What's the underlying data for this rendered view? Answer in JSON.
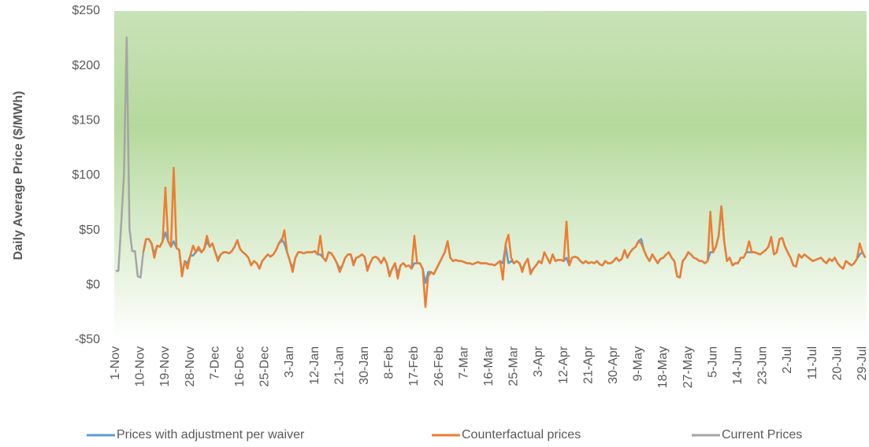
{
  "chart_data": {
    "type": "line",
    "y_label": "Daily Average Price ($/MWh)",
    "ylim": [
      -50,
      250
    ],
    "yticks": [
      {
        "value": -50,
        "label": "-$50"
      },
      {
        "value": 0,
        "label": "$0"
      },
      {
        "value": 50,
        "label": "$50"
      },
      {
        "value": 100,
        "label": "$100"
      },
      {
        "value": 150,
        "label": "$150"
      },
      {
        "value": 200,
        "label": "$200"
      },
      {
        "value": 250,
        "label": "$250"
      }
    ],
    "grid": false,
    "legend": "bottom",
    "categories": [
      "1-Nov",
      null,
      null,
      null,
      null,
      null,
      null,
      null,
      null,
      "10-Nov",
      null,
      null,
      null,
      null,
      null,
      null,
      null,
      null,
      "19-Nov",
      null,
      null,
      null,
      null,
      null,
      null,
      null,
      null,
      "28-Nov",
      null,
      null,
      null,
      null,
      null,
      null,
      null,
      null,
      "7-Dec",
      null,
      null,
      null,
      null,
      null,
      null,
      null,
      null,
      "16-Dec",
      null,
      null,
      null,
      null,
      null,
      null,
      null,
      null,
      "25-Dec",
      null,
      null,
      null,
      null,
      null,
      null,
      null,
      null,
      "3-Jan",
      null,
      null,
      null,
      null,
      null,
      null,
      null,
      null,
      "12-Jan",
      null,
      null,
      null,
      null,
      null,
      null,
      null,
      null,
      "21-Jan",
      null,
      null,
      null,
      null,
      null,
      null,
      null,
      null,
      "30-Jan",
      null,
      null,
      null,
      null,
      null,
      null,
      null,
      null,
      "8-Feb",
      null,
      null,
      null,
      null,
      null,
      null,
      null,
      null,
      "17-Feb",
      null,
      null,
      null,
      null,
      null,
      null,
      null,
      null,
      "26-Feb",
      null,
      null,
      null,
      null,
      null,
      null,
      null,
      null,
      "7-Mar",
      null,
      null,
      null,
      null,
      null,
      null,
      null,
      null,
      "16-Mar",
      null,
      null,
      null,
      null,
      null,
      null,
      null,
      null,
      "25-Mar",
      null,
      null,
      null,
      null,
      null,
      null,
      null,
      null,
      "3-Apr",
      null,
      null,
      null,
      null,
      null,
      null,
      null,
      null,
      "12-Apr",
      null,
      null,
      null,
      null,
      null,
      null,
      null,
      null,
      "21-Apr",
      null,
      null,
      null,
      null,
      null,
      null,
      null,
      null,
      "30-Apr",
      null,
      null,
      null,
      null,
      null,
      null,
      null,
      null,
      "9-May",
      null,
      null,
      null,
      null,
      null,
      null,
      null,
      null,
      "18-May",
      null,
      null,
      null,
      null,
      null,
      null,
      null,
      null,
      "27-May",
      null,
      null,
      null,
      null,
      null,
      null,
      null,
      null,
      "5-Jun",
      null,
      null,
      null,
      null,
      null,
      null,
      null,
      null,
      "14-Jun",
      null,
      null,
      null,
      null,
      null,
      null,
      null,
      null,
      "23-Jun",
      null,
      null,
      null,
      null,
      null,
      null,
      null,
      null,
      "2-Jul",
      null,
      null,
      null,
      null,
      null,
      null,
      null,
      null,
      "11-Jul",
      null,
      null,
      null,
      null,
      null,
      null,
      null,
      null,
      "20-Jul",
      null,
      null,
      null,
      null,
      null,
      null,
      null,
      null,
      "29-Jul",
      null
    ],
    "series": [
      {
        "name": "Prices with adjustment per waiver",
        "color": "#5b9bd5",
        "values": [
          null,
          null,
          null,
          null,
          null,
          null,
          null,
          null,
          null,
          null,
          30,
          42,
          42,
          38,
          28,
          36,
          35,
          40,
          48,
          40,
          35,
          40,
          34,
          32,
          10,
          22,
          20,
          27,
          27,
          30,
          33,
          30,
          33,
          40,
          35,
          38,
          30,
          24,
          28,
          30,
          30,
          29,
          31,
          35,
          41,
          33,
          30,
          28,
          25,
          18,
          22,
          20,
          15,
          22,
          25,
          28,
          26,
          28,
          32,
          38,
          42,
          38,
          30,
          22,
          15,
          25,
          30,
          30,
          29,
          30,
          30,
          30,
          31,
          28,
          28,
          25,
          22,
          30,
          29,
          25,
          20,
          15,
          18,
          25,
          28,
          28,
          20,
          25,
          26,
          28,
          26,
          15,
          20,
          25,
          26,
          24,
          20,
          25,
          20,
          10,
          15,
          20,
          10,
          18,
          20,
          17,
          18,
          15,
          20,
          20,
          20,
          15,
          2,
          12,
          12,
          10,
          15,
          20,
          25,
          30,
          40,
          25,
          22,
          23,
          22,
          22,
          21,
          20,
          20,
          19,
          20,
          21,
          20,
          20,
          20,
          19,
          19,
          18,
          20,
          22,
          20,
          36,
          20,
          22,
          20,
          22,
          20,
          14,
          20,
          24,
          12,
          15,
          18,
          22,
          20,
          30,
          25,
          20,
          28,
          22,
          23,
          23,
          22,
          25,
          18,
          25,
          26,
          25,
          22,
          20,
          22,
          20,
          21,
          20,
          22,
          19,
          18,
          22,
          20,
          20,
          22,
          25,
          22,
          24,
          32,
          25,
          30,
          33,
          35,
          40,
          42,
          32,
          26,
          22,
          28,
          24,
          20,
          24,
          25,
          28,
          30,
          25,
          22,
          8,
          7,
          22,
          25,
          30,
          28,
          25,
          24,
          22,
          22,
          20,
          22,
          30,
          30,
          35,
          45,
          72,
          40,
          22,
          25,
          18,
          20,
          20,
          25,
          25,
          30,
          30,
          30,
          30,
          29,
          28,
          30,
          32,
          35,
          44,
          28,
          30,
          42,
          43,
          35,
          30,
          25,
          18,
          17,
          28,
          25,
          28,
          26,
          24,
          22,
          23,
          24,
          25,
          22,
          20,
          24,
          22,
          25,
          20,
          17,
          15,
          22,
          20,
          18,
          20,
          24,
          28,
          30,
          25
        ]
      },
      {
        "name": "Counterfactual prices",
        "color": "#ed7d31",
        "values": [
          null,
          null,
          null,
          null,
          null,
          null,
          null,
          null,
          null,
          null,
          30,
          42,
          42,
          38,
          25,
          36,
          35,
          40,
          89,
          40,
          35,
          107,
          34,
          32,
          8,
          22,
          15,
          27,
          36,
          30,
          35,
          30,
          33,
          45,
          35,
          38,
          30,
          22,
          28,
          30,
          30,
          29,
          31,
          35,
          41,
          33,
          30,
          28,
          25,
          18,
          22,
          20,
          15,
          22,
          25,
          28,
          26,
          28,
          32,
          38,
          40,
          50,
          30,
          22,
          12,
          25,
          30,
          30,
          29,
          30,
          30,
          30,
          31,
          28,
          45,
          25,
          22,
          30,
          29,
          25,
          20,
          12,
          18,
          25,
          28,
          28,
          18,
          25,
          26,
          28,
          26,
          13,
          20,
          25,
          26,
          24,
          20,
          25,
          20,
          8,
          15,
          20,
          6,
          18,
          20,
          17,
          18,
          15,
          45,
          20,
          20,
          15,
          -20,
          8,
          12,
          10,
          15,
          20,
          25,
          30,
          40,
          25,
          22,
          23,
          22,
          22,
          21,
          20,
          20,
          19,
          20,
          21,
          20,
          20,
          20,
          19,
          19,
          18,
          20,
          22,
          5,
          38,
          46,
          25,
          20,
          22,
          20,
          12,
          20,
          24,
          10,
          15,
          18,
          22,
          20,
          30,
          25,
          20,
          28,
          22,
          23,
          23,
          22,
          58,
          18,
          25,
          26,
          25,
          22,
          20,
          22,
          20,
          21,
          20,
          22,
          19,
          18,
          22,
          20,
          20,
          22,
          25,
          22,
          24,
          32,
          25,
          30,
          33,
          35,
          40,
          38,
          32,
          26,
          22,
          28,
          24,
          20,
          24,
          25,
          28,
          30,
          25,
          22,
          8,
          7,
          22,
          25,
          30,
          28,
          25,
          24,
          22,
          22,
          20,
          22,
          67,
          30,
          35,
          45,
          72,
          40,
          22,
          25,
          18,
          20,
          20,
          25,
          25,
          30,
          40,
          30,
          30,
          29,
          28,
          30,
          32,
          35,
          44,
          28,
          30,
          42,
          43,
          35,
          30,
          25,
          18,
          17,
          28,
          25,
          28,
          26,
          24,
          22,
          23,
          24,
          25,
          22,
          20,
          24,
          22,
          25,
          20,
          17,
          15,
          22,
          20,
          18,
          20,
          24,
          38,
          30,
          25
        ]
      },
      {
        "name": "Current Prices",
        "color": "#a5a5a5",
        "values": [
          13,
          13,
          55,
          100,
          226,
          52,
          31,
          31,
          8,
          7,
          30,
          null,
          null,
          null,
          null,
          null,
          null,
          null,
          null,
          null,
          null,
          null,
          null,
          null,
          null,
          null,
          null,
          null,
          null,
          null,
          null,
          null,
          null,
          null,
          null,
          null,
          null,
          null,
          null,
          null,
          null,
          null,
          null,
          null,
          null,
          null,
          null,
          null,
          null,
          null,
          null,
          null,
          null,
          null,
          null,
          null,
          null,
          null,
          null,
          null,
          null,
          null,
          null,
          null,
          null,
          null,
          null,
          null,
          null,
          null,
          null,
          null,
          null,
          null,
          null,
          null,
          null,
          null,
          null,
          null,
          null,
          null,
          null,
          null,
          null,
          null,
          null,
          null,
          null,
          null,
          null,
          null,
          null,
          null,
          null,
          null,
          null,
          null,
          null,
          null,
          null,
          null,
          null,
          null,
          null,
          null,
          null,
          null,
          null,
          null,
          null,
          null,
          null,
          null,
          null,
          null,
          null,
          null,
          null,
          null,
          null,
          null,
          null,
          null,
          null,
          null,
          null,
          null,
          null,
          null,
          null,
          null,
          null,
          null,
          null,
          null,
          null,
          null,
          null,
          null,
          null,
          null,
          null,
          null,
          null,
          null,
          null,
          null,
          null,
          null,
          null,
          null,
          null,
          null,
          null,
          null,
          null,
          null,
          null,
          null,
          null,
          null,
          null,
          null,
          null,
          null,
          null,
          null,
          null,
          null,
          null,
          null,
          null,
          null,
          null,
          null,
          null,
          null,
          null,
          null,
          null,
          null,
          null,
          null,
          null,
          null,
          null,
          null,
          null,
          null,
          null,
          null,
          null,
          null,
          null,
          null,
          null,
          null,
          null,
          null,
          null,
          null,
          null,
          null,
          null,
          null,
          null,
          null,
          null,
          null,
          null,
          null,
          null,
          null,
          null,
          null,
          null,
          null,
          null,
          null,
          null,
          null,
          null,
          null,
          null,
          null,
          null,
          null,
          null,
          null,
          null,
          null,
          null,
          null,
          null,
          null,
          null,
          null,
          null,
          null,
          null,
          null,
          null,
          null,
          null,
          null,
          null,
          null,
          null,
          null,
          null,
          null,
          null,
          null,
          null,
          null,
          null,
          null,
          null,
          null,
          null,
          null,
          null,
          null,
          null,
          null,
          null,
          null,
          null,
          null,
          null,
          null
        ]
      }
    ]
  }
}
